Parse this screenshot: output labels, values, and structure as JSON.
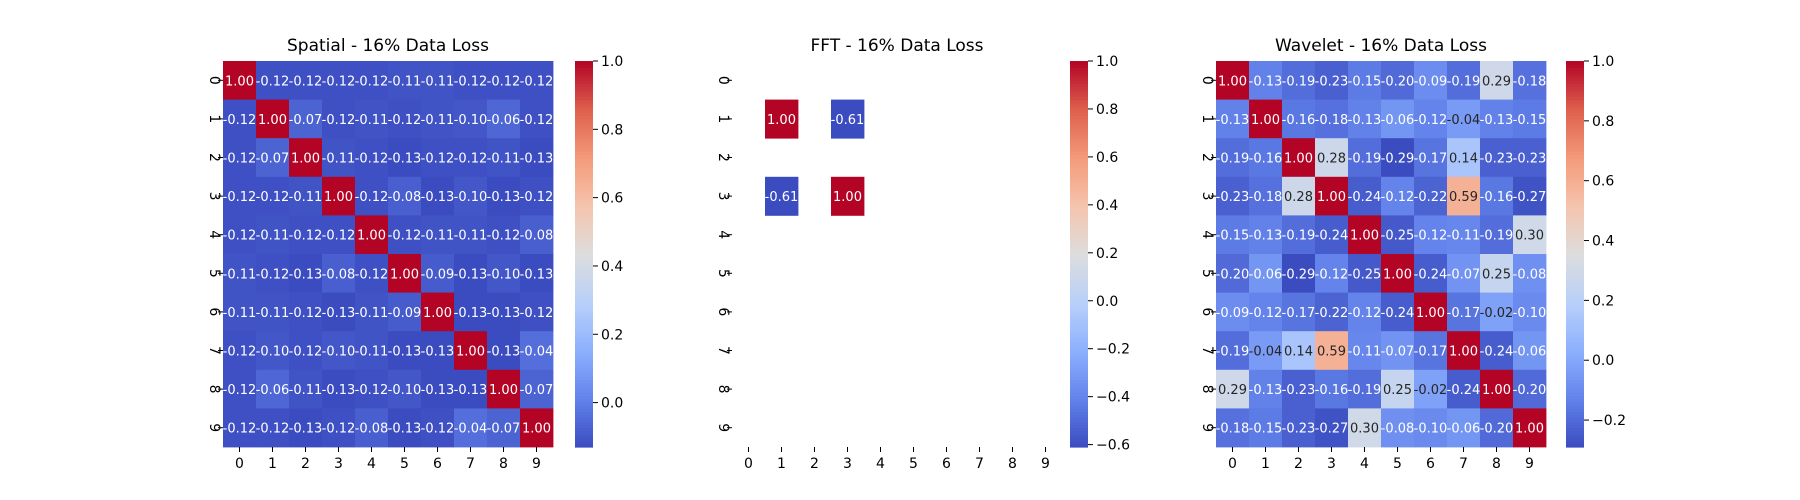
{
  "chart_data": [
    {
      "type": "heatmap",
      "title": "Spatial - 16% Data Loss",
      "rows": [
        "0",
        "1",
        "2",
        "3",
        "4",
        "5",
        "6",
        "7",
        "8",
        "9"
      ],
      "cols": [
        "0",
        "1",
        "2",
        "3",
        "4",
        "5",
        "6",
        "7",
        "8",
        "9"
      ],
      "colormap": "coolwarm",
      "vmin": -0.13,
      "vmax": 1.0,
      "colorbar_ticks": [
        0.0,
        0.2,
        0.4,
        0.6,
        0.8,
        1.0
      ],
      "colorbar_tick_labels": [
        "0.0",
        "0.2",
        "0.4",
        "0.6",
        "0.8",
        "1.0"
      ],
      "values": [
        [
          1.0,
          -0.12,
          -0.12,
          -0.12,
          -0.12,
          -0.11,
          -0.11,
          -0.12,
          -0.12,
          -0.12
        ],
        [
          -0.12,
          1.0,
          -0.07,
          -0.12,
          -0.11,
          -0.12,
          -0.11,
          -0.1,
          -0.06,
          -0.12
        ],
        [
          -0.12,
          -0.07,
          1.0,
          -0.11,
          -0.12,
          -0.13,
          -0.12,
          -0.12,
          -0.11,
          -0.13
        ],
        [
          -0.12,
          -0.12,
          -0.11,
          1.0,
          -0.12,
          -0.08,
          -0.13,
          -0.1,
          -0.13,
          -0.12
        ],
        [
          -0.12,
          -0.11,
          -0.12,
          -0.12,
          1.0,
          -0.12,
          -0.11,
          -0.11,
          -0.12,
          -0.08
        ],
        [
          -0.11,
          -0.12,
          -0.13,
          -0.08,
          -0.12,
          1.0,
          -0.09,
          -0.13,
          -0.1,
          -0.13
        ],
        [
          -0.11,
          -0.11,
          -0.12,
          -0.13,
          -0.11,
          -0.09,
          1.0,
          -0.13,
          -0.13,
          -0.12
        ],
        [
          -0.12,
          -0.1,
          -0.12,
          -0.1,
          -0.11,
          -0.13,
          -0.13,
          1.0,
          -0.13,
          -0.04
        ],
        [
          -0.12,
          -0.06,
          -0.11,
          -0.13,
          -0.12,
          -0.1,
          -0.13,
          -0.13,
          1.0,
          -0.07
        ],
        [
          -0.12,
          -0.12,
          -0.13,
          -0.12,
          -0.08,
          -0.13,
          -0.12,
          -0.04,
          -0.07,
          1.0
        ]
      ]
    },
    {
      "type": "heatmap",
      "title": "FFT - 16% Data Loss",
      "rows": [
        "0",
        "1",
        "2",
        "3",
        "4",
        "5",
        "6",
        "7",
        "8",
        "9"
      ],
      "cols": [
        "0",
        "1",
        "2",
        "3",
        "4",
        "5",
        "6",
        "7",
        "8",
        "9"
      ],
      "colormap": "coolwarm",
      "vmin": -0.61,
      "vmax": 1.0,
      "colorbar_ticks": [
        -0.6,
        -0.4,
        -0.2,
        0.0,
        0.2,
        0.4,
        0.6,
        0.8,
        1.0
      ],
      "colorbar_tick_labels": [
        "−0.6",
        "−0.4",
        "−0.2",
        "0.0",
        "0.2",
        "0.4",
        "0.6",
        "0.8",
        "1.0"
      ],
      "values": [
        [
          null,
          null,
          null,
          null,
          null,
          null,
          null,
          null,
          null,
          null
        ],
        [
          null,
          1.0,
          null,
          -0.61,
          null,
          null,
          null,
          null,
          null,
          null
        ],
        [
          null,
          null,
          null,
          null,
          null,
          null,
          null,
          null,
          null,
          null
        ],
        [
          null,
          -0.61,
          null,
          1.0,
          null,
          null,
          null,
          null,
          null,
          null
        ],
        [
          null,
          null,
          null,
          null,
          null,
          null,
          null,
          null,
          null,
          null
        ],
        [
          null,
          null,
          null,
          null,
          null,
          null,
          null,
          null,
          null,
          null
        ],
        [
          null,
          null,
          null,
          null,
          null,
          null,
          null,
          null,
          null,
          null
        ],
        [
          null,
          null,
          null,
          null,
          null,
          null,
          null,
          null,
          null,
          null
        ],
        [
          null,
          null,
          null,
          null,
          null,
          null,
          null,
          null,
          null,
          null
        ],
        [
          null,
          null,
          null,
          null,
          null,
          null,
          null,
          null,
          null,
          null
        ]
      ]
    },
    {
      "type": "heatmap",
      "title": "Wavelet - 16% Data Loss",
      "rows": [
        "0",
        "1",
        "2",
        "3",
        "4",
        "5",
        "6",
        "7",
        "8",
        "9"
      ],
      "cols": [
        "0",
        "1",
        "2",
        "3",
        "4",
        "5",
        "6",
        "7",
        "8",
        "9"
      ],
      "colormap": "coolwarm",
      "vmin": -0.29,
      "vmax": 1.0,
      "colorbar_ticks": [
        -0.2,
        0.0,
        0.2,
        0.4,
        0.6,
        0.8,
        1.0
      ],
      "colorbar_tick_labels": [
        "−0.2",
        "0.0",
        "0.2",
        "0.4",
        "0.6",
        "0.8",
        "1.0"
      ],
      "values": [
        [
          1.0,
          -0.13,
          -0.19,
          -0.23,
          -0.15,
          -0.2,
          -0.09,
          -0.19,
          0.29,
          -0.18
        ],
        [
          -0.13,
          1.0,
          -0.16,
          -0.18,
          -0.13,
          -0.06,
          -0.12,
          -0.04,
          -0.13,
          -0.15
        ],
        [
          -0.19,
          -0.16,
          1.0,
          0.28,
          -0.19,
          -0.29,
          -0.17,
          0.14,
          -0.23,
          -0.23
        ],
        [
          -0.23,
          -0.18,
          0.28,
          1.0,
          -0.24,
          -0.12,
          -0.22,
          0.59,
          -0.16,
          -0.27
        ],
        [
          -0.15,
          -0.13,
          -0.19,
          -0.24,
          1.0,
          -0.25,
          -0.12,
          -0.11,
          -0.19,
          0.3
        ],
        [
          -0.2,
          -0.06,
          -0.29,
          -0.12,
          -0.25,
          1.0,
          -0.24,
          -0.07,
          0.25,
          -0.08
        ],
        [
          -0.09,
          -0.12,
          -0.17,
          -0.22,
          -0.12,
          -0.24,
          1.0,
          -0.17,
          -0.02,
          -0.1
        ],
        [
          -0.19,
          -0.04,
          0.14,
          0.59,
          -0.11,
          -0.07,
          -0.17,
          1.0,
          -0.24,
          -0.06
        ],
        [
          0.29,
          -0.13,
          -0.23,
          -0.16,
          -0.19,
          0.25,
          -0.02,
          -0.24,
          1.0,
          -0.2
        ],
        [
          -0.18,
          -0.15,
          -0.23,
          -0.27,
          0.3,
          -0.08,
          -0.1,
          -0.06,
          -0.2,
          1.0
        ]
      ]
    }
  ]
}
